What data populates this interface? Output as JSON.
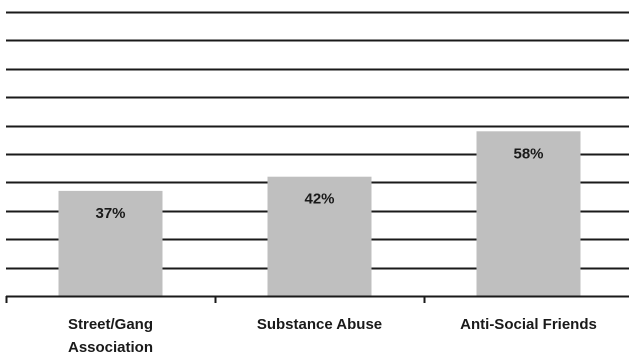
{
  "chart_data": {
    "type": "bar",
    "categories": [
      "Street/Gang Association",
      "Substance Abuse",
      "Anti-Social Friends"
    ],
    "category_label_lines": [
      [
        "Street/Gang",
        "Association"
      ],
      [
        "Substance Abuse"
      ],
      [
        "Anti-Social Friends"
      ]
    ],
    "values": [
      37,
      42,
      58
    ],
    "data_labels": [
      "37%",
      "42%",
      "58%"
    ],
    "ylim": [
      0,
      100
    ],
    "grid": true,
    "legend": false,
    "title": "",
    "xlabel": "",
    "ylabel": ""
  },
  "colors": {
    "bar": "#bfbfbf",
    "gridline": "#1a1a1a",
    "axis": "#1a1a1a",
    "text": "#1a1a1a",
    "background": "#ffffff"
  }
}
